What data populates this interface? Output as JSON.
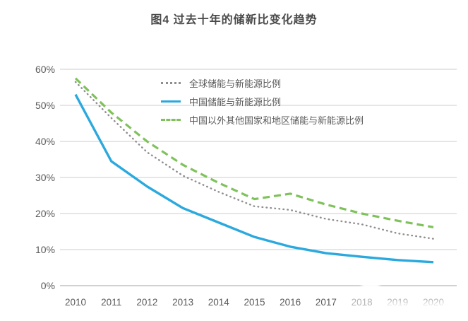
{
  "title": "图4 过去十年的储新比变化趋势",
  "colors": {
    "grid": "#cccccc",
    "axis": "#a3a3a3",
    "tick_text": "#5a5a5a",
    "title_text": "#4a4a4a",
    "series_global": "#8e8e8e",
    "series_china": "#2ba9de",
    "series_others": "#7fc25b"
  },
  "chart_data": {
    "type": "line",
    "title": "图4 过去十年的储新比变化趋势",
    "x": [
      "2010",
      "2011",
      "2012",
      "2013",
      "2014",
      "2015",
      "2016",
      "2017",
      "2018",
      "2019",
      "2020"
    ],
    "series": [
      {
        "name": "全球储能与新能源比例",
        "line_style": "dotted",
        "color": "#8e8e8e",
        "values": [
          56.5,
          46.5,
          37,
          30.5,
          26,
          22,
          21,
          18.5,
          17,
          14.5,
          13
        ]
      },
      {
        "name": "中国储能与新能源比例",
        "line_style": "solid",
        "color": "#2ba9de",
        "values": [
          53,
          34.5,
          27.5,
          21.5,
          17.5,
          13.5,
          10.8,
          9,
          8,
          7.1,
          6.5
        ]
      },
      {
        "name": "中国以外其他国家和地区储能与新能源比例",
        "line_style": "dashed",
        "color": "#7fc25b",
        "values": [
          57.5,
          48,
          40,
          33.5,
          28.5,
          24,
          25.5,
          22.5,
          20,
          18,
          16.2
        ]
      }
    ],
    "y_ticks": [
      "0%",
      "10%",
      "20%",
      "30%",
      "40%",
      "50%",
      "60%"
    ],
    "ylim": [
      0,
      60
    ],
    "y_step": 10,
    "xlabel": "",
    "ylabel": "",
    "grid": "horizontal",
    "legend_position": "inside-top-center"
  }
}
